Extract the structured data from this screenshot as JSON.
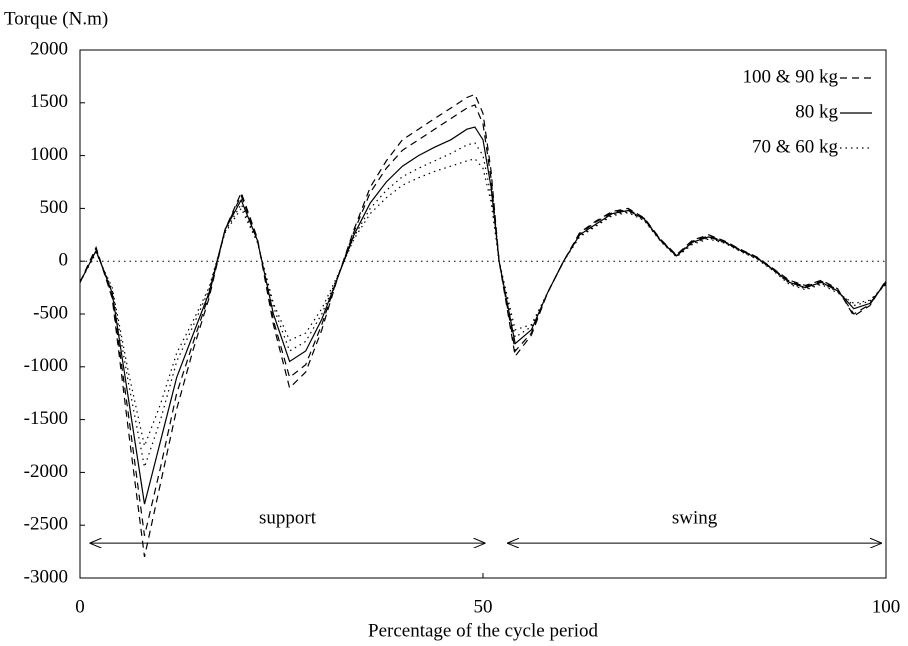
{
  "chart_data": {
    "type": "line",
    "ylabel": "Torque (N.m)",
    "xlabel": "Percentage of the cycle period",
    "x": [
      0,
      2,
      4,
      6,
      8,
      10,
      12,
      14,
      16,
      18,
      20,
      22,
      24,
      26,
      28,
      30,
      32,
      34,
      36,
      38,
      40,
      42,
      44,
      46,
      48,
      49,
      50,
      51,
      52,
      54,
      56,
      58,
      60,
      62,
      64,
      66,
      68,
      70,
      72,
      74,
      76,
      78,
      80,
      82,
      84,
      86,
      88,
      90,
      92,
      94,
      96,
      98,
      100
    ],
    "series": [
      {
        "name": "100 & 90 kg",
        "style": "dashed",
        "color": "#000000",
        "curves": [
          [
            -200,
            130,
            -350,
            -1600,
            -2800,
            -2100,
            -1400,
            -850,
            -350,
            300,
            650,
            220,
            -600,
            -1200,
            -1050,
            -650,
            -150,
            300,
            700,
            950,
            1150,
            1250,
            1350,
            1450,
            1550,
            1580,
            1400,
            850,
            0,
            -900,
            -700,
            -300,
            0,
            270,
            380,
            470,
            500,
            410,
            210,
            60,
            200,
            250,
            190,
            110,
            40,
            -70,
            -180,
            -230,
            -180,
            -260,
            -520,
            -420,
            -180
          ],
          [
            -200,
            120,
            -330,
            -1450,
            -2600,
            -1950,
            -1250,
            -780,
            -320,
            300,
            620,
            210,
            -560,
            -1100,
            -980,
            -600,
            -150,
            280,
            650,
            880,
            1050,
            1150,
            1250,
            1350,
            1450,
            1480,
            1300,
            780,
            0,
            -850,
            -680,
            -300,
            0,
            260,
            370,
            460,
            490,
            405,
            205,
            55,
            190,
            240,
            185,
            105,
            35,
            -75,
            -190,
            -240,
            -190,
            -270,
            -500,
            -410,
            -190
          ]
        ]
      },
      {
        "name": "80 kg",
        "style": "solid",
        "color": "#000000",
        "curves": [
          [
            -200,
            100,
            -300,
            -1300,
            -2300,
            -1700,
            -1100,
            -700,
            -300,
            300,
            580,
            200,
            -500,
            -950,
            -850,
            -550,
            -150,
            250,
            550,
            750,
            900,
            1000,
            1080,
            1150,
            1250,
            1270,
            1150,
            700,
            0,
            -780,
            -650,
            -300,
            0,
            250,
            350,
            450,
            480,
            400,
            200,
            50,
            180,
            230,
            180,
            100,
            30,
            -80,
            -200,
            -250,
            -200,
            -280,
            -450,
            -400,
            -200
          ]
        ]
      },
      {
        "name": "70 & 60 kg",
        "style": "dotted",
        "color": "#000000",
        "curves": [
          [
            -200,
            90,
            -270,
            -1150,
            -1950,
            -1500,
            -950,
            -620,
            -270,
            280,
            540,
            190,
            -430,
            -850,
            -760,
            -500,
            -140,
            230,
            500,
            670,
            800,
            880,
            950,
            1020,
            1100,
            1120,
            1000,
            620,
            0,
            -720,
            -620,
            -300,
            0,
            240,
            340,
            440,
            470,
            390,
            195,
            45,
            170,
            220,
            175,
            95,
            25,
            -85,
            -210,
            -260,
            -210,
            -290,
            -420,
            -380,
            -210
          ],
          [
            -200,
            80,
            -250,
            -1050,
            -1750,
            -1350,
            -870,
            -570,
            -250,
            270,
            500,
            180,
            -400,
            -750,
            -680,
            -450,
            -130,
            210,
            450,
            600,
            720,
            790,
            850,
            900,
            950,
            970,
            880,
            560,
            0,
            -650,
            -600,
            -300,
            0,
            230,
            330,
            430,
            460,
            385,
            190,
            40,
            160,
            210,
            170,
            90,
            20,
            -90,
            -220,
            -270,
            -220,
            -300,
            -400,
            -370,
            -220
          ]
        ]
      }
    ],
    "reference_line": 0,
    "annotations": [
      {
        "text": "support",
        "x_start": 1.2,
        "x_end": 50.3,
        "y": -2670
      },
      {
        "text": "swing",
        "x_start": 53,
        "x_end": 99.5,
        "y": -2670
      }
    ],
    "xlim": [
      0,
      100
    ],
    "xticks": [
      0,
      50,
      100
    ],
    "ylim": [
      -3000,
      2000
    ],
    "yticks": [
      -3000,
      -2500,
      -2000,
      -1500,
      -1000,
      -500,
      0,
      500,
      1000,
      1500,
      2000
    ],
    "grid": false,
    "legend": "upper right"
  }
}
